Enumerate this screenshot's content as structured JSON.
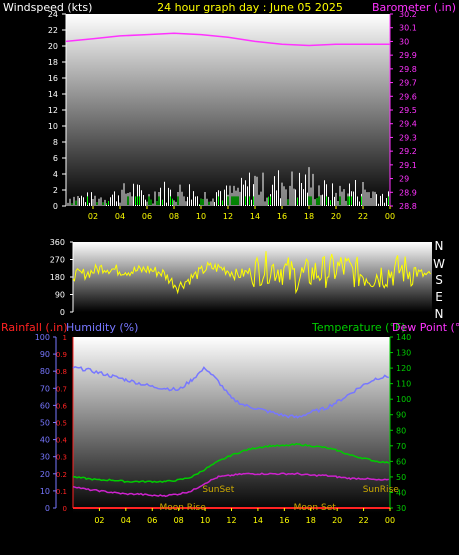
{
  "header": {
    "wind_title": "Windspeed (kts)",
    "main_title": "24 hour graph day : June 05 2025",
    "baro_title": "Barometer (.in)"
  },
  "bottom_header": {
    "rain_title": "Rainfall (.in)",
    "hum_title": "Humidity (%)",
    "temp_title": "Temperature (°F)",
    "dew_title": "Dew Point (°F)"
  },
  "x_ticks": [
    "02",
    "04",
    "06",
    "08",
    "10",
    "12",
    "14",
    "16",
    "18",
    "20",
    "22",
    "00"
  ],
  "compass": [
    "N",
    "W",
    "S",
    "E",
    "N"
  ],
  "colors": {
    "wind": "#ffffff",
    "gust": "#00ff00",
    "barometer": "#ff33ff",
    "direction": "#ffff00",
    "humidity": "#7777ff",
    "temperature": "#00cc00",
    "dewpoint": "#cc22cc",
    "rainfall": "#ff2222",
    "astro": "#ccaa00"
  },
  "chart_data": [
    {
      "type": "line",
      "xlim": [
        0,
        24
      ],
      "ylim_left": [
        0,
        24
      ],
      "ylim_right": [
        28.8,
        30.2
      ],
      "left_ticks": [
        "0",
        "2",
        "4",
        "6",
        "8",
        "10",
        "12",
        "14",
        "16",
        "18",
        "20",
        "22",
        "24"
      ],
      "right_ticks": [
        "28.8",
        "28.9",
        "29",
        "29.1",
        "29.2",
        "29.3",
        "29.4",
        "29.5",
        "29.6",
        "29.7",
        "29.8",
        "29.9",
        "30",
        "30.1",
        "30.2"
      ],
      "series": [
        {
          "name": "Windspeed (kts)",
          "x": [
            0,
            1,
            2,
            3,
            4,
            5,
            6,
            7,
            8,
            9,
            10,
            11,
            12,
            13,
            14,
            15,
            16,
            17,
            18,
            19,
            20,
            21,
            22,
            23,
            24
          ],
          "values": [
            1,
            1,
            1,
            1,
            1.5,
            2,
            1,
            2,
            1.5,
            2,
            1,
            2,
            1.5,
            2,
            3,
            2,
            3,
            2.5,
            3,
            2,
            1.5,
            2,
            2,
            1.5,
            1
          ]
        },
        {
          "name": "Barometer (.in)",
          "x": [
            0,
            2,
            4,
            6,
            8,
            10,
            12,
            14,
            16,
            18,
            20,
            22,
            24
          ],
          "values": [
            30.0,
            30.02,
            30.04,
            30.05,
            30.06,
            30.05,
            30.03,
            30.0,
            29.98,
            29.97,
            29.98,
            29.98,
            29.98
          ]
        }
      ]
    },
    {
      "type": "line",
      "xlim": [
        0,
        24
      ],
      "ylim": [
        0,
        360
      ],
      "left_ticks": [
        "360",
        "270",
        "180",
        "90",
        "0"
      ],
      "series": [
        {
          "name": "Wind direction",
          "x": [
            0,
            1,
            2,
            3,
            4,
            5,
            6,
            7,
            8,
            9,
            10,
            11,
            12,
            13,
            14,
            15,
            16,
            17,
            18,
            19,
            20,
            21,
            22,
            23,
            24
          ],
          "values": [
            190,
            200,
            230,
            215,
            210,
            220,
            200,
            130,
            180,
            230,
            225,
            190,
            210,
            230,
            220,
            180,
            200,
            210,
            230,
            200,
            190,
            200,
            220,
            200,
            180
          ]
        }
      ]
    },
    {
      "type": "line",
      "xlim": [
        0,
        24
      ],
      "ylim_humidity": [
        0,
        100
      ],
      "ylim_temp": [
        30,
        140
      ],
      "ylim_rain": [
        0,
        1
      ],
      "hum_ticks": [
        "100",
        "90",
        "80",
        "70",
        "60",
        "50",
        "40",
        "30",
        "20",
        "10",
        "0"
      ],
      "rain_ticks": [
        "1",
        "0.9",
        "0.8",
        "0.7",
        "0.6",
        "0.5",
        "0.4",
        "0.3",
        "0.2",
        "0.1",
        "0"
      ],
      "temp_ticks": [
        "140",
        "130",
        "120",
        "110",
        "100",
        "90",
        "80",
        "70",
        "60",
        "50",
        "40",
        "30"
      ],
      "series": [
        {
          "name": "Humidity (%)",
          "x": [
            0,
            1,
            2,
            3,
            4,
            5,
            6,
            7,
            8,
            9,
            10,
            11,
            12,
            13,
            14,
            15,
            16,
            17,
            18,
            19,
            20,
            21,
            22,
            23,
            24
          ],
          "values": [
            82,
            81,
            79,
            77,
            75,
            73,
            71,
            70,
            69,
            75,
            82,
            74,
            64,
            60,
            58,
            56,
            54,
            53,
            56,
            58,
            62,
            67,
            72,
            76,
            77
          ]
        },
        {
          "name": "Temperature (°F)",
          "x": [
            0,
            1,
            2,
            3,
            4,
            5,
            6,
            7,
            8,
            9,
            10,
            11,
            12,
            13,
            14,
            15,
            16,
            17,
            18,
            19,
            20,
            21,
            22,
            23,
            24
          ],
          "values": [
            50,
            49,
            48,
            48,
            47,
            47,
            47,
            47,
            48,
            50,
            55,
            60,
            64,
            67,
            69,
            70,
            70,
            71,
            70,
            69,
            67,
            64,
            62,
            60,
            59
          ]
        },
        {
          "name": "Dew Point (°F)",
          "x": [
            0,
            1,
            2,
            3,
            4,
            5,
            6,
            7,
            8,
            9,
            10,
            11,
            12,
            13,
            14,
            15,
            16,
            17,
            18,
            19,
            20,
            21,
            22,
            23,
            24
          ],
          "values": [
            44,
            42,
            41,
            40,
            39,
            39,
            38,
            38,
            39,
            41,
            46,
            50,
            51,
            52,
            52,
            52,
            52,
            52,
            51,
            51,
            50,
            49,
            49,
            48,
            48
          ]
        },
        {
          "name": "Rainfall (.in)",
          "x": [
            0,
            24
          ],
          "values": [
            0,
            0
          ]
        }
      ],
      "annotations": [
        {
          "label": "SunSet",
          "x": 11,
          "row": "upper"
        },
        {
          "label": "SunRise",
          "x": 23.3,
          "row": "upper"
        },
        {
          "label": "Moon Rise",
          "x": 8.3,
          "row": "lower"
        },
        {
          "label": "Moon Set",
          "x": 18.3,
          "row": "lower"
        }
      ]
    }
  ]
}
